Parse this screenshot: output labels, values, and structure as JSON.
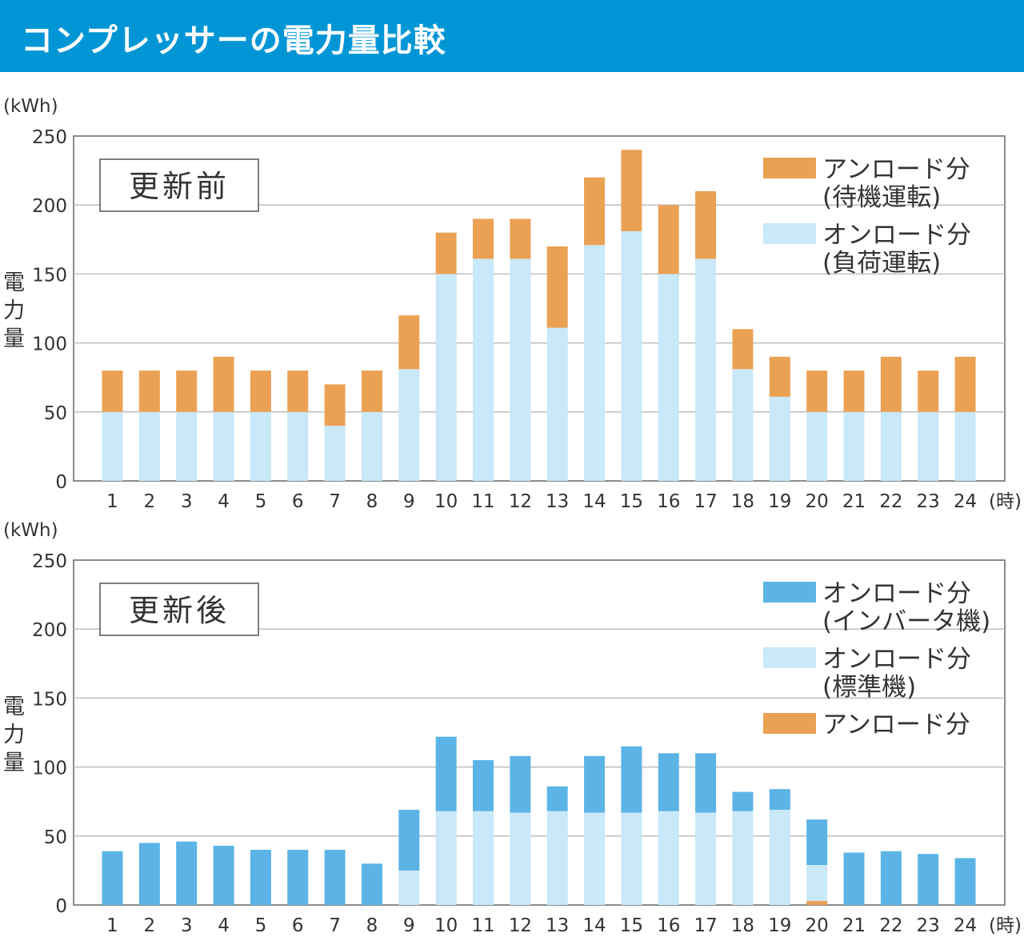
{
  "header": {
    "title": "コンプレッサーの電力量比較"
  },
  "colors": {
    "banner": "#0096d6",
    "unload": "#eba154",
    "onload_standard": "#c9e8f8",
    "onload_inverter": "#5cb4e6"
  },
  "chart_data": [
    {
      "type": "bar",
      "stacked": true,
      "panel_label": "更新前",
      "unit_label": "(kWh)",
      "ylabel": [
        "電",
        "力",
        "量"
      ],
      "xlabel": "(時)",
      "ylim": [
        0,
        250
      ],
      "yticks": [
        0,
        50,
        100,
        150,
        200,
        250
      ],
      "categories": [
        "1",
        "2",
        "3",
        "4",
        "5",
        "6",
        "7",
        "8",
        "9",
        "10",
        "11",
        "12",
        "13",
        "14",
        "15",
        "16",
        "17",
        "18",
        "19",
        "20",
        "21",
        "22",
        "23",
        "24"
      ],
      "series": [
        {
          "name": "オンロード分",
          "sub": "(負荷運転)",
          "color": "#c9e8f8",
          "values": [
            50,
            50,
            50,
            50,
            50,
            50,
            40,
            50,
            81,
            150,
            161,
            161,
            111,
            171,
            181,
            150,
            161,
            81,
            61,
            50,
            50,
            50,
            50,
            50
          ]
        },
        {
          "name": "アンロード分",
          "sub": "(待機運転)",
          "color": "#eba154",
          "values": [
            30,
            30,
            30,
            40,
            30,
            30,
            30,
            30,
            39,
            30,
            29,
            29,
            59,
            49,
            59,
            50,
            49,
            29,
            29,
            30,
            30,
            40,
            30,
            40
          ]
        }
      ],
      "legend": [
        {
          "name": "アンロード分",
          "sub": "(待機運転)",
          "color": "#eba154"
        },
        {
          "name": "オンロード分",
          "sub": "(負荷運転)",
          "color": "#c9e8f8"
        }
      ]
    },
    {
      "type": "bar",
      "stacked": true,
      "panel_label": "更新後",
      "unit_label": "(kWh)",
      "ylabel": [
        "電",
        "力",
        "量"
      ],
      "xlabel": "(時)",
      "ylim": [
        0,
        250
      ],
      "yticks": [
        0,
        50,
        100,
        150,
        200,
        250
      ],
      "categories": [
        "1",
        "2",
        "3",
        "4",
        "5",
        "6",
        "7",
        "8",
        "9",
        "10",
        "11",
        "12",
        "13",
        "14",
        "15",
        "16",
        "17",
        "18",
        "19",
        "20",
        "21",
        "22",
        "23",
        "24"
      ],
      "series": [
        {
          "name": "アンロード分",
          "sub": "",
          "color": "#eba154",
          "values": [
            0,
            0,
            0,
            0,
            0,
            0,
            0,
            0,
            0,
            0,
            0,
            0,
            0,
            0,
            0,
            0,
            0,
            0,
            0,
            3,
            0,
            0,
            0,
            0
          ]
        },
        {
          "name": "オンロード分",
          "sub": "(標準機)",
          "color": "#c9e8f8",
          "values": [
            0,
            0,
            0,
            0,
            0,
            0,
            0,
            0,
            25,
            68,
            68,
            67,
            68,
            67,
            67,
            68,
            67,
            68,
            69,
            26,
            0,
            0,
            0,
            0
          ]
        },
        {
          "name": "オンロード分",
          "sub": "(インバータ機)",
          "color": "#5cb4e6",
          "values": [
            39,
            45,
            46,
            43,
            40,
            40,
            40,
            30,
            44,
            54,
            37,
            41,
            18,
            41,
            48,
            42,
            43,
            14,
            15,
            33,
            38,
            39,
            37,
            34
          ]
        }
      ],
      "legend": [
        {
          "name": "オンロード分",
          "sub": "(インバータ機)",
          "color": "#5cb4e6"
        },
        {
          "name": "オンロード分",
          "sub": "(標準機)",
          "color": "#c9e8f8"
        },
        {
          "name": "アンロード分",
          "sub": "",
          "color": "#eba154"
        }
      ]
    }
  ]
}
